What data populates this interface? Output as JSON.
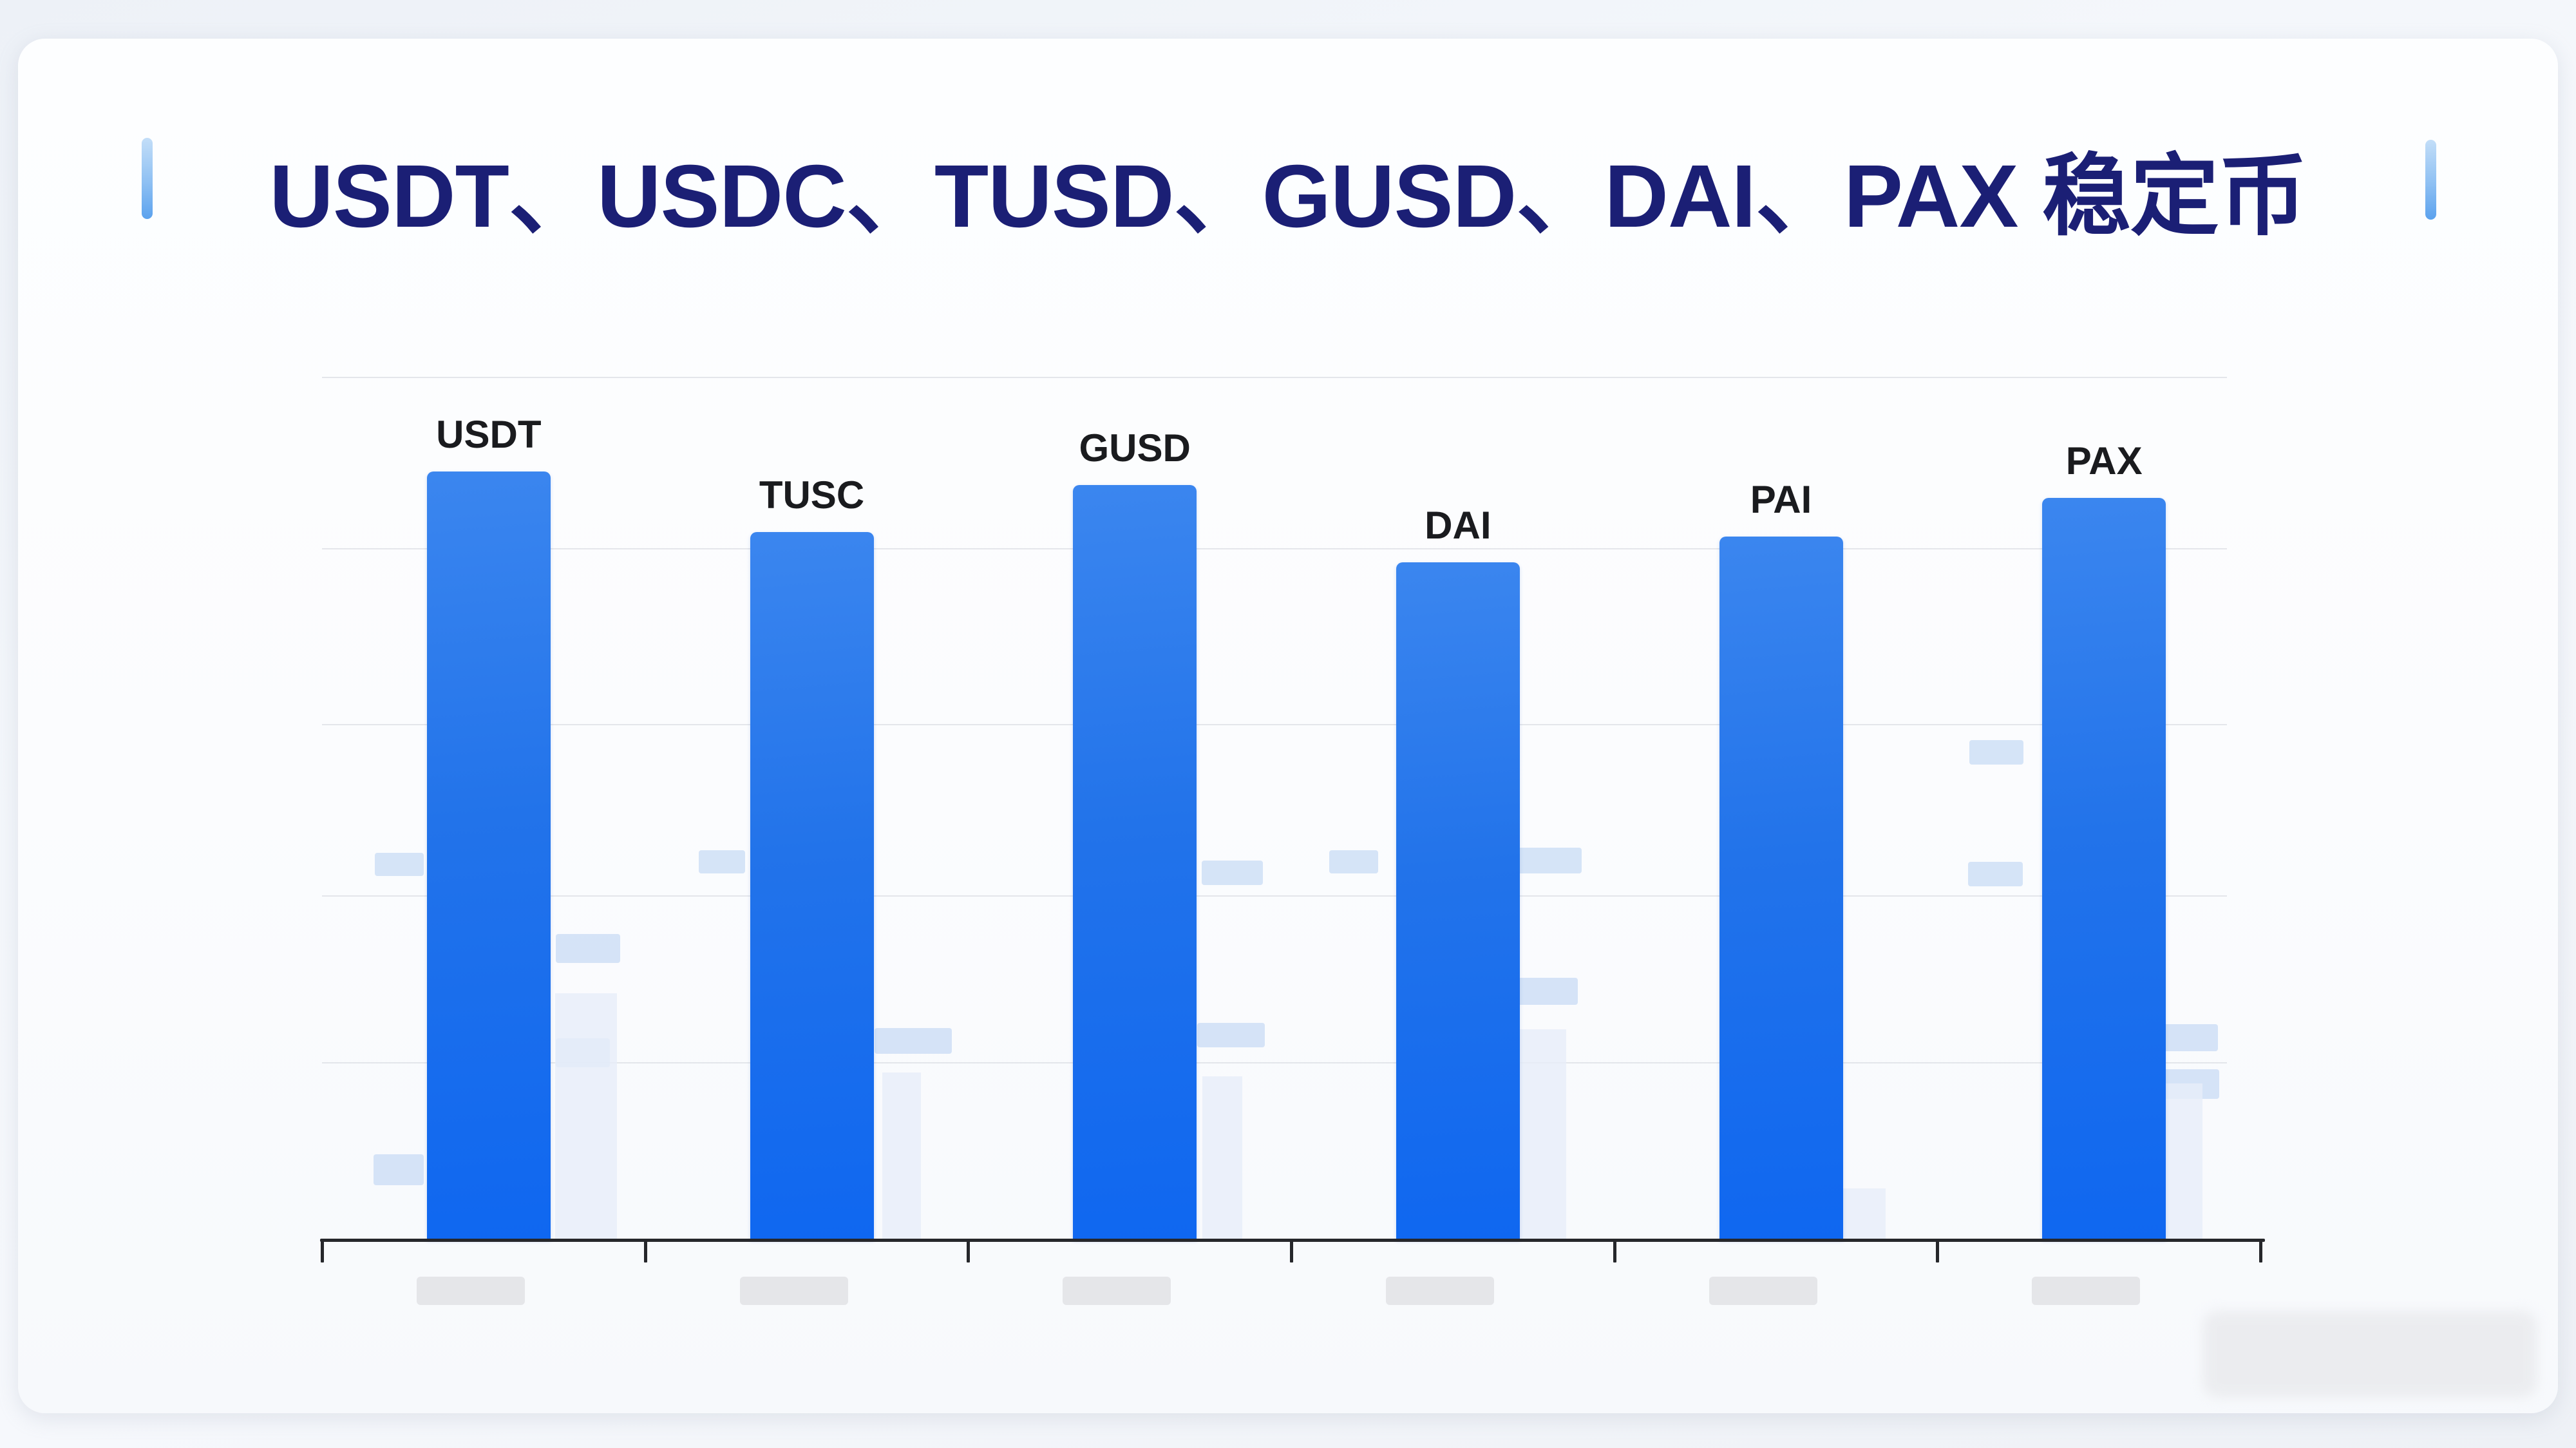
{
  "header": {
    "title": "USDT、USDC、TUSD、GUSD、DAI、PAX 稳定币"
  },
  "chart_data": {
    "type": "bar",
    "title": "USDT、USDC、TUSD、GUSD、DAI、PAX 稳定币",
    "categories": [
      "USDT",
      "TUSC",
      "GUSD",
      "DAI",
      "PAI",
      "PAX"
    ],
    "values": [
      89,
      82,
      87.5,
      78.5,
      81.5,
      86
    ],
    "xlabel": "",
    "ylabel": "",
    "ylim": [
      0,
      100
    ],
    "grid": "faint horizontal gridlines",
    "legend": "none",
    "colors": {
      "bar": "#2274eb",
      "axis": "#26272b",
      "bar_label": "#1a1b1e",
      "title": "#1b1f75",
      "title_accent": "#8ec0f3",
      "ghost_decor_blue": "#ccddf5",
      "ghost_axis_label_gray": "#e4e5e8"
    }
  }
}
